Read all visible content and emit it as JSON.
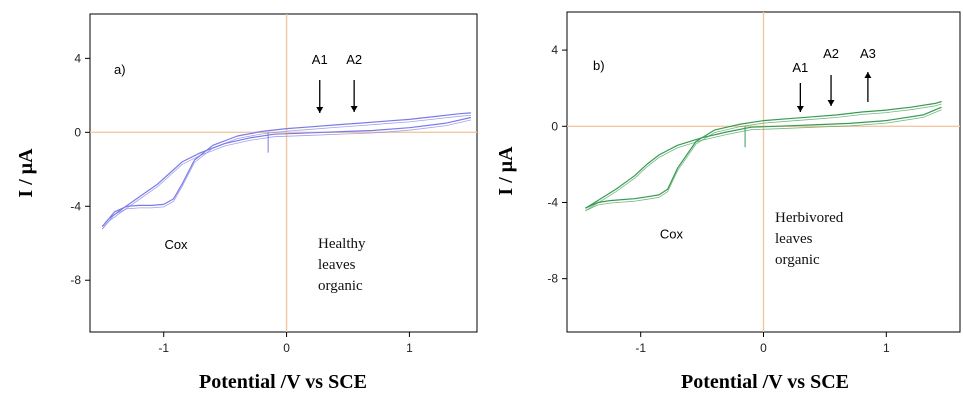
{
  "chart_data": [
    {
      "type": "line",
      "panel_label": "a)",
      "xlabel": "Potential /V vs SCE",
      "ylabel": "I / μA",
      "xlim": [
        -1.6,
        1.55
      ],
      "ylim": [
        -10.8,
        6.4
      ],
      "x_ticks": [
        -1,
        0,
        1
      ],
      "y_ticks": [
        4,
        0,
        -4,
        -8
      ],
      "x_tick_labels": [
        "-1",
        "0",
        "1"
      ],
      "y_tick_labels": [
        "4",
        "0",
        "-4",
        "-8"
      ],
      "color": "#7b7be8",
      "series": [
        {
          "x": [
            1.5,
            1.3,
            1.0,
            0.7,
            0.5,
            0.3,
            0.1,
            -0.1,
            -0.3,
            -0.5,
            -0.7,
            -0.85,
            -0.95,
            -1.05,
            -1.2,
            -1.35,
            -1.45,
            -1.5
          ],
          "y": [
            0.8,
            0.5,
            0.25,
            0.1,
            0.05,
            0.0,
            -0.05,
            -0.1,
            -0.3,
            -0.6,
            -1.1,
            -1.6,
            -2.2,
            -2.8,
            -3.5,
            -4.2,
            -4.7,
            -5.1
          ]
        },
        {
          "x": [
            -1.5,
            -1.4,
            -1.3,
            -1.2,
            -1.1,
            -1.0,
            -0.92,
            -0.85,
            -0.75,
            -0.6,
            -0.4,
            -0.2,
            0.0,
            0.2,
            0.4,
            0.6,
            0.8,
            1.0,
            1.2,
            1.4,
            1.5
          ],
          "y": [
            -5.1,
            -4.3,
            -4.0,
            -3.95,
            -3.95,
            -3.9,
            -3.6,
            -2.8,
            -1.5,
            -0.7,
            -0.2,
            0.05,
            0.2,
            0.3,
            0.4,
            0.5,
            0.6,
            0.7,
            0.85,
            1.0,
            1.05
          ]
        }
      ],
      "annotations": [
        {
          "text": "A1",
          "x": 0.27
        },
        {
          "text": "A2",
          "x": 0.55
        },
        {
          "text": "Cox",
          "x": -0.9,
          "y": -6.3
        }
      ],
      "inset_text": [
        "Healthy",
        "leaves",
        "organic"
      ]
    },
    {
      "type": "line",
      "panel_label": "b)",
      "xlabel": "Potential /V vs SCE",
      "ylabel": "I / μA",
      "xlim": [
        -1.6,
        1.6
      ],
      "ylim": [
        -10.8,
        6.0
      ],
      "x_ticks": [
        -1,
        0,
        1
      ],
      "y_ticks": [
        4,
        0,
        -4,
        -8
      ],
      "x_tick_labels": [
        "-1",
        "0",
        "1"
      ],
      "y_tick_labels": [
        "4",
        "0",
        "-4",
        "-8"
      ],
      "color": "#3a9a52",
      "series": [
        {
          "x": [
            1.45,
            1.3,
            1.0,
            0.7,
            0.5,
            0.3,
            0.1,
            -0.1,
            -0.3,
            -0.5,
            -0.7,
            -0.85,
            -0.95,
            -1.05,
            -1.2,
            -1.35,
            -1.45
          ],
          "y": [
            1.0,
            0.6,
            0.3,
            0.15,
            0.1,
            0.05,
            0.0,
            -0.05,
            -0.3,
            -0.6,
            -1.0,
            -1.5,
            -2.0,
            -2.6,
            -3.3,
            -3.9,
            -4.3
          ]
        },
        {
          "x": [
            -1.45,
            -1.35,
            -1.25,
            -1.15,
            -1.05,
            -0.95,
            -0.85,
            -0.78,
            -0.7,
            -0.55,
            -0.4,
            -0.2,
            0.0,
            0.2,
            0.4,
            0.6,
            0.8,
            1.0,
            1.2,
            1.4,
            1.45
          ],
          "y": [
            -4.3,
            -4.0,
            -3.9,
            -3.85,
            -3.8,
            -3.7,
            -3.6,
            -3.3,
            -2.2,
            -0.8,
            -0.2,
            0.1,
            0.3,
            0.4,
            0.5,
            0.6,
            0.75,
            0.85,
            1.0,
            1.2,
            1.3
          ]
        }
      ],
      "annotations": [
        {
          "text": "A1",
          "x": 0.3
        },
        {
          "text": "A2",
          "x": 0.55
        },
        {
          "text": "A3",
          "x": 0.85
        },
        {
          "text": "Cox",
          "x": -0.75,
          "y": -5.9
        }
      ],
      "inset_text": [
        "Herbivored",
        "leaves",
        "organic"
      ]
    }
  ]
}
